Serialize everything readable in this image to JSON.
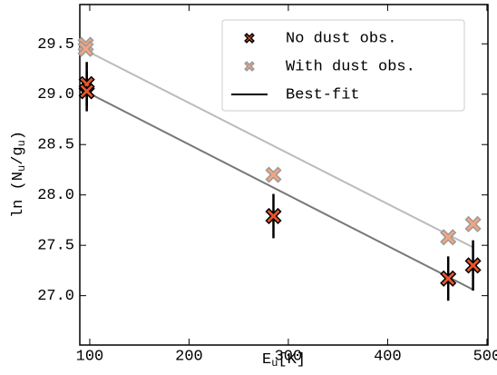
{
  "chart_data": {
    "type": "scatter",
    "x_label": [
      "E",
      "u",
      "[K]"
    ],
    "y_label": [
      "ln (N",
      "u",
      "/g",
      "u",
      ")"
    ],
    "xlim": [
      90,
      501
    ],
    "ylim": [
      26.51,
      29.89
    ],
    "xticks": [
      100,
      200,
      300,
      400,
      500
    ],
    "yticks": [
      {
        "value": 27,
        "label": "27.0"
      },
      27.5,
      {
        "value": 28,
        "label": "28.0"
      },
      28.5,
      {
        "value": 29,
        "label": "29.0"
      },
      29.5
    ],
    "series": [
      {
        "name": "No dust obs.",
        "color": "#e8572a",
        "edge": "#000000",
        "x": [
          97,
          97,
          285,
          461,
          486
        ],
        "values": [
          29.1,
          29.03,
          27.79,
          27.17,
          27.3
        ],
        "errors": [
          0.22,
          0.2,
          0.22,
          0.22,
          0.25
        ]
      },
      {
        "name": "With dust obs.",
        "color": "#f4a582",
        "edge": "#999999",
        "x": [
          96,
          96,
          285,
          461,
          486
        ],
        "values": [
          29.49,
          29.45,
          28.2,
          27.58,
          27.71
        ]
      }
    ],
    "best_fit": {
      "name": "Best-fit",
      "color": "#000000",
      "lines": [
        {
          "color": "#777777",
          "x": [
            97,
            486
          ],
          "values": [
            29.02,
            27.06
          ]
        },
        {
          "color": "#bbbbbb",
          "x": [
            97,
            486
          ],
          "values": [
            29.43,
            27.48
          ]
        }
      ]
    },
    "legend": "upper right"
  }
}
